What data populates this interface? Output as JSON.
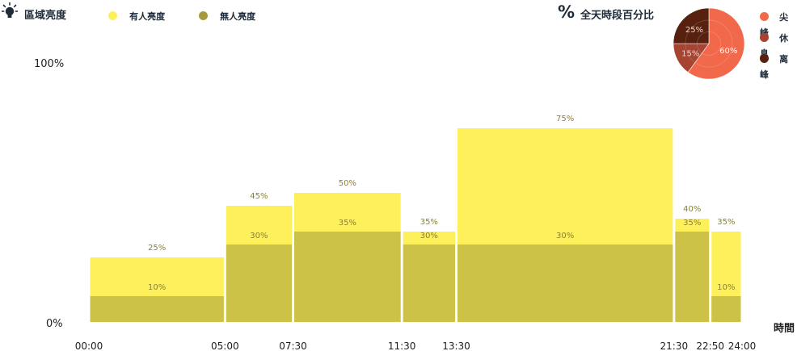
{
  "header": {
    "title": "區域亮度",
    "legend": [
      {
        "label": "有人亮度",
        "color": "#fdf05b"
      },
      {
        "label": "無人亮度",
        "color": "#a69b3b"
      }
    ]
  },
  "pie_panel": {
    "title": "全天時段百分比",
    "legend": [
      {
        "label": "尖峰",
        "color": "#f1694a"
      },
      {
        "label": "休息",
        "color": "#a74331"
      },
      {
        "label": "离峰",
        "color": "#58200f"
      }
    ]
  },
  "colors": {
    "occupied": "#fdf05b",
    "unoccupied": "#cdc248",
    "label_text": "#8c8130",
    "peak": "#f1694a",
    "rest": "#a74331",
    "offpeak": "#58200f"
  },
  "axis": {
    "y_top_label": "100%",
    "y_bottom_label": "0%",
    "x_label": "時間"
  },
  "chart_data": [
    {
      "type": "bar",
      "title": "",
      "xlabel": "時間",
      "ylabel": "",
      "ylim": [
        0,
        100
      ],
      "x_boundaries": [
        "00:00",
        "05:00",
        "07:30",
        "11:30",
        "13:30",
        "21:30",
        "22:50",
        "24:00"
      ],
      "segments": [
        {
          "start": "00:00",
          "end": "05:00",
          "occupied": 25,
          "unoccupied": 10
        },
        {
          "start": "05:00",
          "end": "07:30",
          "occupied": 45,
          "unoccupied": 30
        },
        {
          "start": "07:30",
          "end": "11:30",
          "occupied": 50,
          "unoccupied": 35
        },
        {
          "start": "11:30",
          "end": "13:30",
          "occupied": 35,
          "unoccupied": 30
        },
        {
          "start": "13:30",
          "end": "21:30",
          "occupied": 75,
          "unoccupied": 30
        },
        {
          "start": "21:30",
          "end": "22:50",
          "occupied": 40,
          "unoccupied": 35
        },
        {
          "start": "22:50",
          "end": "24:00",
          "occupied": 35,
          "unoccupied": 10
        }
      ],
      "series": [
        {
          "name": "有人亮度",
          "values": [
            25,
            45,
            50,
            35,
            75,
            40,
            35
          ]
        },
        {
          "name": "無人亮度",
          "values": [
            10,
            30,
            35,
            30,
            30,
            35,
            10
          ]
        }
      ],
      "legend_position": "top-left"
    },
    {
      "type": "pie",
      "title": "全天時段百分比",
      "categories": [
        "尖峰",
        "休息",
        "离峰"
      ],
      "values": [
        60,
        15,
        25
      ],
      "legend_position": "right"
    }
  ]
}
